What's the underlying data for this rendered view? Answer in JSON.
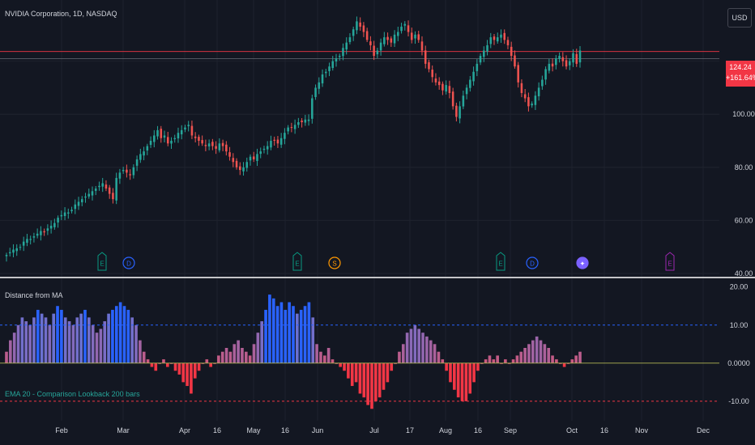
{
  "header": {
    "symbol_title": "NVIDIA Corporation, 1D, NASDAQ"
  },
  "currency_button": {
    "label": "USD"
  },
  "last_price": {
    "value": "124.24",
    "change": "+161.64%"
  },
  "colors": {
    "background": "#131722",
    "up": "#26a69a",
    "down": "#ef5350",
    "hist_up": "#7e57c2",
    "hist_strong": "#2962ff",
    "hist_down": "#f23645",
    "grid": "#1e222d",
    "separator": "#ffffff"
  },
  "indicator": {
    "name": "Distance from MA",
    "label": "EMA 20 - Comparison Lookback 200 bars",
    "upper_level": 10.0,
    "lower_level": -10.0
  },
  "event_markers": [
    {
      "type": "earnings",
      "symbol": "E",
      "color": "#089981"
    },
    {
      "type": "dividend",
      "symbol": "D",
      "color": "#2962ff"
    },
    {
      "type": "earnings",
      "symbol": "E",
      "color": "#089981"
    },
    {
      "type": "split",
      "symbol": "S",
      "color": "#ff9800"
    },
    {
      "type": "earnings",
      "symbol": "E",
      "color": "#089981"
    },
    {
      "type": "dividend",
      "symbol": "D",
      "color": "#2962ff"
    },
    {
      "type": "news",
      "symbol": "✦",
      "color": "#7b61ff"
    },
    {
      "type": "earnings",
      "symbol": "E",
      "color": "#9c27b0"
    }
  ],
  "chart_data": [
    {
      "type": "candlestick",
      "title": "NVIDIA Corporation, 1D, NASDAQ",
      "ylim": [
        40,
        140
      ],
      "y_ticks": [
        "100.00",
        "80.00",
        "60.00",
        "40.00"
      ],
      "x_ticks": [
        "Feb",
        "Mar",
        "Apr",
        "16",
        "May",
        "16",
        "Jun",
        "Jul",
        "17",
        "Aug",
        "16",
        "Sep",
        "Oct",
        "16",
        "Nov",
        "Dec"
      ],
      "reference_price": 124.24,
      "prior_close_line": 121.0,
      "close": [
        47,
        48,
        49,
        49.5,
        50,
        52,
        53,
        53,
        54,
        55,
        56,
        55.5,
        57,
        58,
        59,
        61,
        62,
        63,
        63,
        64,
        66,
        67,
        68,
        69,
        70,
        71,
        72,
        73,
        74,
        72,
        70,
        68,
        76,
        78,
        79,
        78,
        77,
        80,
        83,
        85,
        86,
        88,
        90,
        92,
        94,
        91,
        92,
        89,
        90,
        91,
        93,
        94,
        95,
        96,
        92,
        91,
        90,
        89,
        88,
        89,
        88,
        87,
        89,
        88,
        86,
        84,
        82,
        80,
        79,
        80,
        82,
        84,
        83,
        85,
        86,
        87,
        88,
        90,
        90,
        89,
        91,
        93,
        95,
        95,
        96,
        97,
        97,
        98,
        98,
        106,
        110,
        112,
        115,
        116,
        118,
        120,
        121,
        122,
        125,
        127,
        129,
        132,
        135,
        133,
        131,
        128,
        126,
        122,
        124,
        127,
        129,
        128,
        127,
        130,
        131,
        133,
        134,
        131,
        128,
        130,
        128,
        124,
        119,
        117,
        114,
        112,
        111,
        109,
        111,
        108,
        103,
        99,
        103,
        107,
        110,
        113,
        116,
        119,
        122,
        124,
        126,
        129,
        128,
        129,
        130,
        128,
        126,
        122,
        118,
        112,
        108,
        106,
        103,
        104,
        107,
        110,
        113,
        117,
        119,
        118,
        121,
        122,
        120,
        118,
        120,
        123,
        119,
        124
      ]
    },
    {
      "type": "bar",
      "title": "Distance from MA",
      "ylim": [
        -13,
        21
      ],
      "y_ticks": [
        "20.00",
        "10.00",
        "0.0000",
        "-10.00"
      ],
      "levels": [
        10.0,
        -10.0,
        0.0
      ],
      "values": [
        3,
        6,
        8,
        10,
        12,
        11,
        10,
        12,
        14,
        13,
        12,
        10,
        13,
        15,
        14,
        12,
        11,
        10,
        12,
        13,
        14,
        12,
        10,
        8,
        9,
        11,
        13,
        14,
        15,
        16,
        15,
        14,
        12,
        10,
        6,
        3,
        1,
        -1,
        -2,
        0,
        1,
        -1,
        0,
        -2,
        -3,
        -5,
        -6,
        -8,
        -4,
        -2,
        0,
        1,
        -1,
        0,
        2,
        3,
        4,
        3,
        5,
        6,
        4,
        3,
        2,
        5,
        8,
        11,
        14,
        18,
        17,
        15,
        16,
        14,
        16,
        15,
        13,
        14,
        15,
        16,
        12,
        5,
        3,
        2,
        4,
        1,
        0,
        -1,
        -2,
        -4,
        -6,
        -5,
        -8,
        -9,
        -11,
        -12,
        -10,
        -9,
        -7,
        -5,
        -2,
        0,
        3,
        5,
        8,
        9,
        10,
        9,
        8,
        7,
        6,
        5,
        3,
        1,
        -2,
        -5,
        -7,
        -9,
        -10,
        -10,
        -8,
        -5,
        -2,
        0,
        1,
        2,
        1,
        2,
        0,
        1,
        0,
        1,
        2,
        3,
        4,
        5,
        6,
        7,
        6,
        5,
        4,
        2,
        1,
        0,
        -1,
        0,
        1,
        2,
        3
      ]
    }
  ]
}
